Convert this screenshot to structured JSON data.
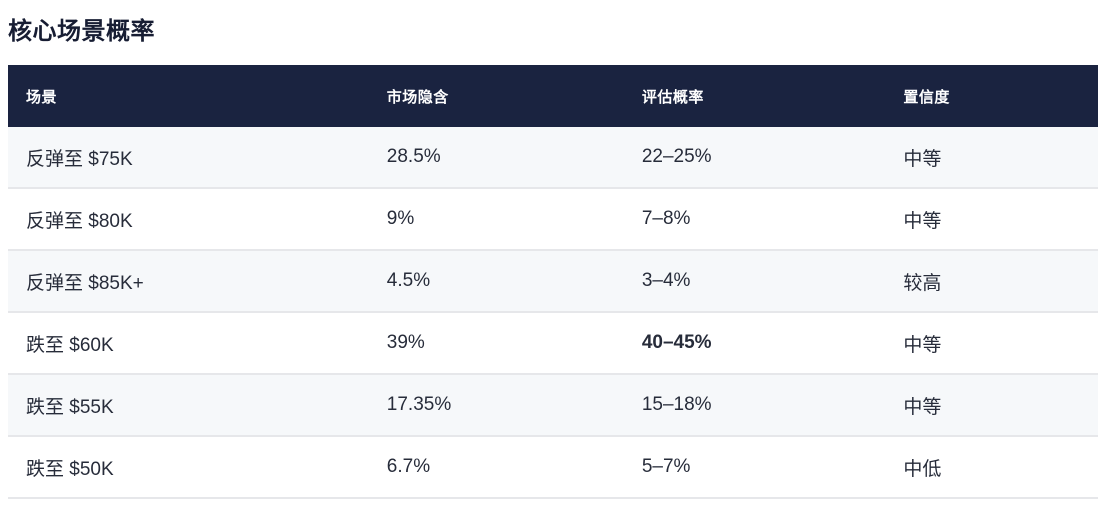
{
  "page": {
    "title": "核心场景概率"
  },
  "colors": {
    "header_background": "#1a2340",
    "header_text": "#ffffff",
    "body_text": "#272c3a",
    "stripe_background": "#f6f8fa",
    "row_border": "#e6e7ea",
    "highlight_red": "#d6334b",
    "title_text": "#171d33"
  },
  "table": {
    "columns": [
      {
        "label": "场景"
      },
      {
        "label": "市场隐含"
      },
      {
        "label": "评估概率"
      },
      {
        "label": "置信度"
      }
    ],
    "rows": [
      {
        "scenario": "反弹至 $75K",
        "market_implied": "28.5%",
        "assessed": "22–25%",
        "confidence": "中等"
      },
      {
        "scenario": "反弹至 $80K",
        "market_implied": "9%",
        "assessed": "7–8%",
        "confidence": "中等"
      },
      {
        "scenario": "反弹至 $85K+",
        "market_implied": "4.5%",
        "assessed": "3–4%",
        "confidence": "较高"
      },
      {
        "scenario": "跌至 $60K",
        "market_implied": "39%",
        "assessed": "40–45%",
        "confidence": "中等"
      },
      {
        "scenario": "跌至 $55K",
        "market_implied": "17.35%",
        "assessed": "15–18%",
        "confidence": "中等"
      },
      {
        "scenario": "跌至 $50K",
        "market_implied": "6.7%",
        "assessed": "5–7%",
        "confidence": "中低"
      }
    ]
  }
}
